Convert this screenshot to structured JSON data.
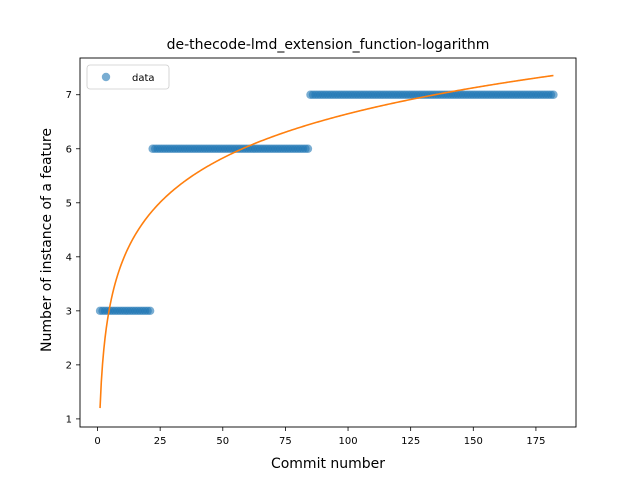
{
  "chart_data": {
    "type": "scatter",
    "title": "de-thecode-lmd_extension_function-logarithm",
    "xlabel": "Commit number",
    "ylabel": "Number of instance of a feature",
    "xlim": [
      -7,
      191
    ],
    "ylim": [
      0.85,
      7.68
    ],
    "xticks": [
      0,
      25,
      50,
      75,
      100,
      125,
      150,
      175
    ],
    "yticks": [
      1,
      2,
      3,
      4,
      5,
      6,
      7
    ],
    "grid": false,
    "legend": {
      "placement": "top-left",
      "entries": [
        "data"
      ]
    },
    "series": [
      {
        "name": "data",
        "kind": "scatter",
        "color": "#1f77b4",
        "segments": [
          {
            "x_start": 1,
            "x_end": 21,
            "y": 3
          },
          {
            "x_start": 22,
            "x_end": 84,
            "y": 6
          },
          {
            "x_start": 85,
            "x_end": 182,
            "y": 7
          }
        ]
      },
      {
        "kind": "line",
        "color": "#ff7f0e",
        "fit": {
          "function": "a + b*ln(x)",
          "a": 1.2,
          "b": 1.183
        },
        "x_range": [
          1,
          182
        ]
      }
    ]
  }
}
